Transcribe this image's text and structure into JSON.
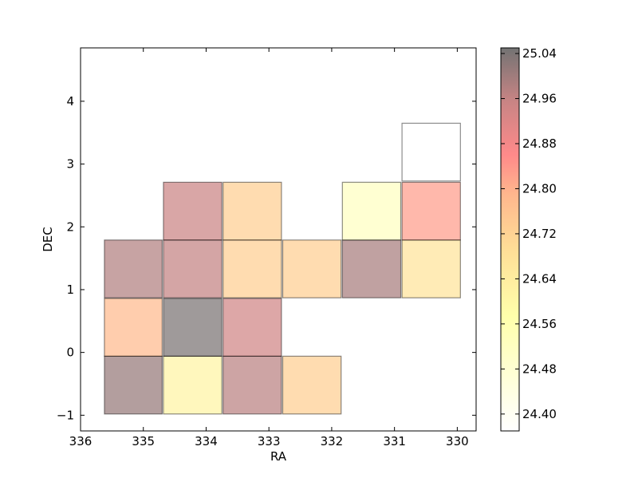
{
  "chart_data": {
    "type": "heatmap",
    "title": "",
    "xlabel": "RA",
    "ylabel": "DEC",
    "x_inverted": true,
    "xlim": [
      336,
      329.7
    ],
    "ylim": [
      -1.25,
      4.85
    ],
    "x_ticks": [
      336,
      335,
      334,
      333,
      332,
      331,
      330
    ],
    "y_ticks": [
      -1,
      0,
      1,
      2,
      3,
      4
    ],
    "grid": false,
    "colorbar": {
      "colormap": "white-yellow-orange-red-black (hot_r, semi-transparent)",
      "range": [
        24.37,
        25.05
      ],
      "ticks": [
        "24.40",
        "24.48",
        "24.56",
        "24.64",
        "24.72",
        "24.80",
        "24.88",
        "24.96",
        "25.04"
      ]
    },
    "cells": [
      {
        "ra_min": 334.7,
        "ra_max": 335.62,
        "dec_min": -0.98,
        "dec_max": -0.06,
        "value": 25.01
      },
      {
        "ra_min": 333.75,
        "ra_max": 334.68,
        "dec_min": -0.98,
        "dec_max": -0.06,
        "value": 24.61
      },
      {
        "ra_min": 332.8,
        "ra_max": 333.73,
        "dec_min": -0.98,
        "dec_max": -0.06,
        "value": 24.97
      },
      {
        "ra_min": 331.85,
        "ra_max": 332.78,
        "dec_min": -0.98,
        "dec_max": -0.06,
        "value": 24.73
      },
      {
        "ra_min": 334.7,
        "ra_max": 335.62,
        "dec_min": -0.06,
        "dec_max": 0.86,
        "value": 24.78
      },
      {
        "ra_min": 333.75,
        "ra_max": 334.68,
        "dec_min": -0.06,
        "dec_max": 0.86,
        "value": 25.04
      },
      {
        "ra_min": 332.8,
        "ra_max": 333.73,
        "dec_min": -0.06,
        "dec_max": 0.86,
        "value": 24.94
      },
      {
        "ra_min": 334.7,
        "ra_max": 335.62,
        "dec_min": 0.87,
        "dec_max": 1.79,
        "value": 24.98
      },
      {
        "ra_min": 333.75,
        "ra_max": 334.68,
        "dec_min": 0.87,
        "dec_max": 1.79,
        "value": 24.96
      },
      {
        "ra_min": 332.8,
        "ra_max": 333.73,
        "dec_min": 0.87,
        "dec_max": 1.79,
        "value": 24.73
      },
      {
        "ra_min": 331.85,
        "ra_max": 332.78,
        "dec_min": 0.87,
        "dec_max": 1.79,
        "value": 24.73
      },
      {
        "ra_min": 330.9,
        "ra_max": 331.83,
        "dec_min": 0.87,
        "dec_max": 1.79,
        "value": 24.99
      },
      {
        "ra_min": 329.95,
        "ra_max": 330.88,
        "dec_min": 0.87,
        "dec_max": 1.79,
        "value": 24.67
      },
      {
        "ra_min": 333.75,
        "ra_max": 334.68,
        "dec_min": 1.79,
        "dec_max": 2.71,
        "value": 24.95
      },
      {
        "ra_min": 332.8,
        "ra_max": 333.73,
        "dec_min": 1.79,
        "dec_max": 2.71,
        "value": 24.73
      },
      {
        "ra_min": 330.9,
        "ra_max": 331.83,
        "dec_min": 1.79,
        "dec_max": 2.71,
        "value": 24.52
      },
      {
        "ra_min": 329.95,
        "ra_max": 330.88,
        "dec_min": 1.79,
        "dec_max": 2.71,
        "value": 24.83
      },
      {
        "ra_min": 329.95,
        "ra_max": 330.88,
        "dec_min": 2.73,
        "dec_max": 3.65,
        "value": 24.37
      }
    ]
  }
}
